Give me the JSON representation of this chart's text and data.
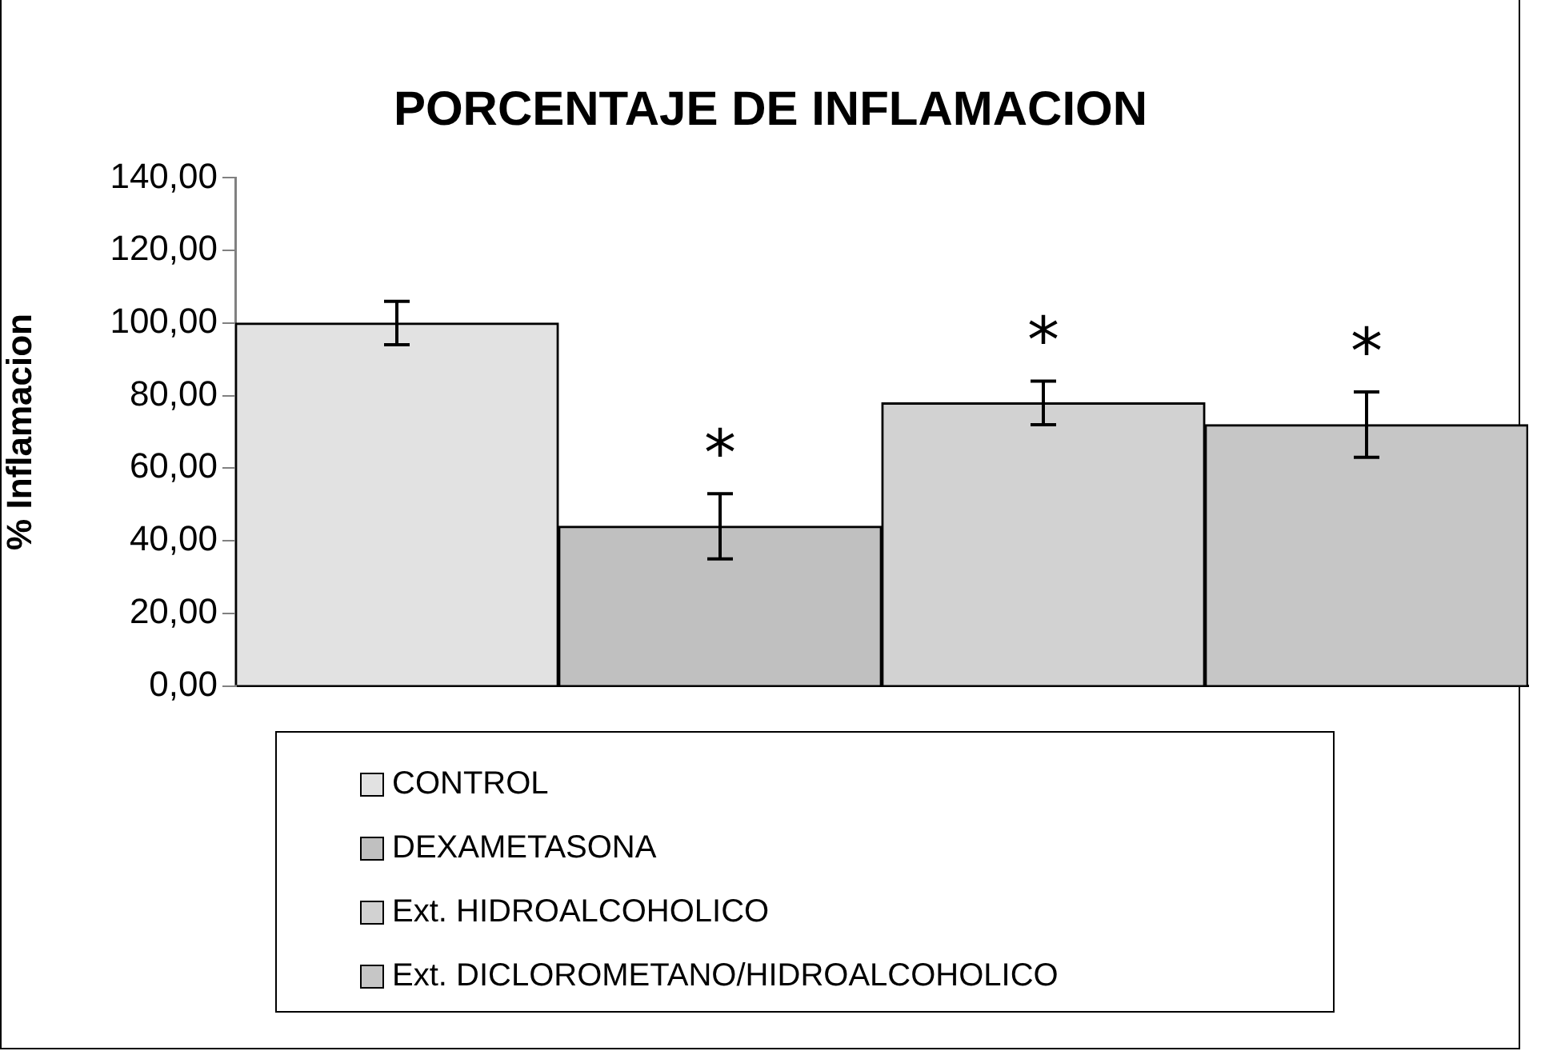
{
  "chart_data": {
    "type": "bar",
    "title": "PORCENTAJE DE INFLAMACION",
    "ylabel": "% Inflamacion",
    "categories": [
      null,
      null,
      null,
      null
    ],
    "series": [
      {
        "name": "CONTROL",
        "color": "#e2e2e2",
        "values": [
          100,
          null,
          null,
          null
        ],
        "errors": [
          6,
          null,
          null,
          null
        ]
      },
      {
        "name": "DEXAMETASONA",
        "color": "#c0c0c0",
        "values": [
          null,
          44,
          null,
          null
        ],
        "errors": [
          null,
          9,
          null,
          null
        ]
      },
      {
        "name": "Ext. HIDROALCOHOLICO",
        "color": "#d2d2d2",
        "values": [
          null,
          null,
          78,
          null
        ],
        "errors": [
          null,
          null,
          6,
          null
        ]
      },
      {
        "name": "Ext. DICLOROMETANO/HIDROALCOHOLICO",
        "color": "#c6c6c6",
        "values": [
          null,
          null,
          null,
          72
        ],
        "errors": [
          null,
          null,
          null,
          9
        ]
      }
    ],
    "annotations": [
      "*",
      "*",
      "*"
    ],
    "ylim": [
      0,
      140
    ],
    "yticks": [
      {
        "value": 0,
        "label": "0,00"
      },
      {
        "value": 20,
        "label": "20,00"
      },
      {
        "value": 40,
        "label": "40,00"
      },
      {
        "value": 60,
        "label": "60,00"
      },
      {
        "value": 80,
        "label": "80,00"
      },
      {
        "value": 100,
        "label": "100,00"
      },
      {
        "value": 120,
        "label": "120,00"
      },
      {
        "value": 140,
        "label": "140,00"
      }
    ],
    "grid": false,
    "legend": "bottom"
  }
}
